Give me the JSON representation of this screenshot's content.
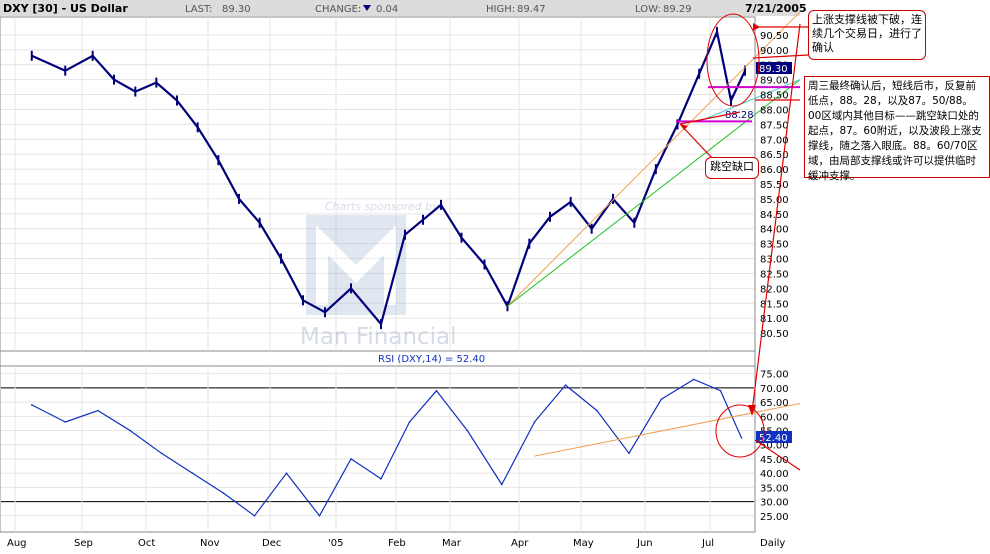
{
  "header": {
    "symbol": "DXY [30] - US Dollar",
    "last_label": "LAST:",
    "last_value": "89.30",
    "change_label": "CHANGE:",
    "change_value": "0.04",
    "high_label": "HIGH:",
    "high_value": "89.47",
    "low_label": "LOW:",
    "low_value": "89.29",
    "date": "7/21/2005"
  },
  "colors": {
    "price": "#00007a",
    "rsi": "#1030c0",
    "trend_orange": "#f0a050",
    "trend_green": "#20c020",
    "trend_cyan": "#40d0d0",
    "magenta": "#d000d0",
    "annot_red": "#e00000",
    "header_bg": "#dcdcdc",
    "grid": "#e4e4e4"
  },
  "sponsor": {
    "line1": "Charts sponsored by:",
    "line2": "Man Financial"
  },
  "price_tags": {
    "current": "89.30",
    "gap_low": "88.28"
  },
  "rsi_tag": "52.40",
  "annotations": {
    "note1": "上涨支撑线被下破，连续几个交易日，进行了确认",
    "note2": "周三最终确认后，短线后市，反复前低点，88。28，以及87。50/88。00区域内其他目标——跳空缺口处的起点，87。60附近，以及波段上涨支撑线，随之落入眼底。88。60/70区域，由局部支撑线或许可以提供临时缓冲支撑。",
    "gap_label": "跳空缺口"
  },
  "chart_data": [
    {
      "type": "line",
      "title": "DXY [30] - US Dollar",
      "xlabel": "",
      "ylabel": "",
      "ylim": [
        80.0,
        91.0
      ],
      "y_ticks": [
        80.5,
        81.0,
        81.5,
        82.0,
        82.5,
        83.0,
        83.5,
        84.0,
        84.5,
        85.0,
        85.5,
        86.0,
        86.5,
        87.0,
        87.5,
        88.0,
        88.5,
        89.0,
        89.5,
        90.0,
        90.5
      ],
      "x_ticks": [
        "Aug",
        "Sep",
        "Oct",
        "Nov",
        "Dec",
        "'05",
        "Feb",
        "Mar",
        "Apr",
        "May",
        "Jun",
        "Jul",
        "Daily"
      ],
      "x": [
        "Aug",
        "Aug",
        "Sep",
        "Sep",
        "Sep",
        "Oct",
        "Oct",
        "Oct",
        "Nov",
        "Nov",
        "Nov",
        "Dec",
        "Dec",
        "Dec",
        "'05",
        "'05",
        "Feb",
        "Feb",
        "Feb",
        "Mar",
        "Mar",
        "Mar",
        "Apr",
        "Apr",
        "Apr",
        "May",
        "May",
        "May",
        "Jun",
        "Jun",
        "Jun",
        "Jul",
        "Jul",
        "Jul"
      ],
      "series": [
        {
          "values": [
            89.8,
            89.3,
            89.8,
            89.0,
            88.6,
            88.9,
            88.3,
            87.4,
            86.3,
            85.0,
            84.2,
            83.0,
            81.6,
            81.2,
            82.0,
            80.8,
            83.8,
            84.3,
            84.8,
            83.7,
            82.8,
            81.4,
            83.5,
            84.4,
            84.9,
            84.0,
            85.0,
            84.2,
            86.0,
            87.5,
            89.2,
            90.6,
            88.3,
            89.3
          ]
        }
      ],
      "trendlines": [
        {
          "from": [
            "Mar",
            81.4
          ],
          "to": [
            "Jul",
            90.6
          ],
          "color": "orange"
        },
        {
          "from": [
            "Mar",
            81.4
          ],
          "to": [
            "Jul",
            89.0
          ],
          "color": "green"
        },
        {
          "from": [
            "Jun",
            87.6
          ],
          "to": [
            "Jul",
            89.0
          ],
          "color": "cyan"
        }
      ],
      "levels": [
        88.28,
        87.6
      ],
      "annotations": [
        "88.28",
        "89.30"
      ]
    },
    {
      "type": "line",
      "title": "RSI (DXY,14) = 52.40",
      "xlabel": "",
      "ylabel": "",
      "ylim": [
        20.0,
        77.0
      ],
      "y_ticks": [
        25.0,
        30.0,
        35.0,
        40.0,
        45.0,
        50.0,
        55.0,
        60.0,
        65.0,
        70.0,
        75.0
      ],
      "reference_lines": [
        30,
        70
      ],
      "x": [
        "Aug",
        "Aug",
        "Sep",
        "Sep",
        "Oct",
        "Oct",
        "Nov",
        "Nov",
        "Dec",
        "Dec",
        "'05",
        "'05",
        "Feb",
        "Feb",
        "Mar",
        "Mar",
        "Apr",
        "Apr",
        "May",
        "May",
        "Jun",
        "Jun",
        "Jul",
        "Jul"
      ],
      "series": [
        {
          "name": "RSI (DXY,14)",
          "values": [
            64,
            58,
            62,
            55,
            47,
            40,
            33,
            25,
            40,
            25,
            45,
            38,
            58,
            69,
            55,
            36,
            58,
            71,
            62,
            47,
            66,
            73,
            69,
            52.4
          ]
        }
      ],
      "trendlines": [
        {
          "from": [
            "Apr",
            46
          ],
          "to": [
            "Jul",
            61
          ],
          "color": "orange"
        }
      ]
    }
  ]
}
